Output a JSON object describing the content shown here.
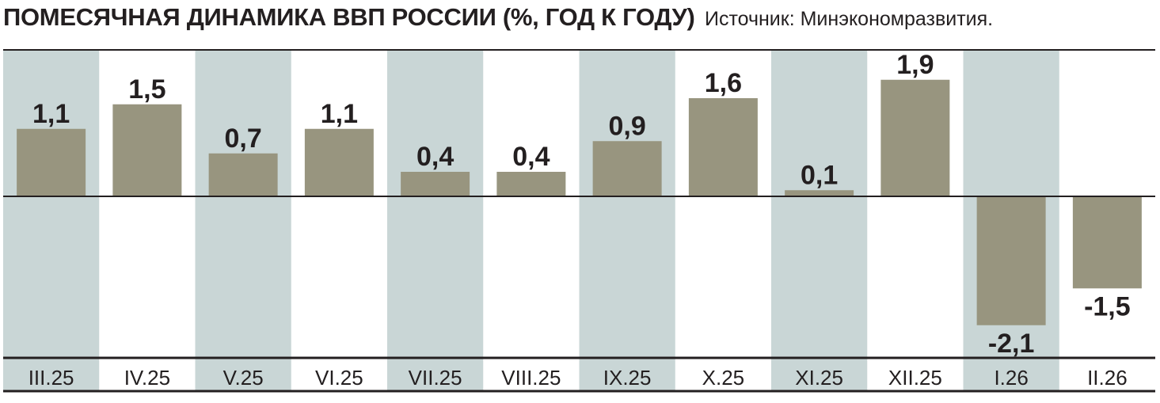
{
  "header": {
    "title": "ПОМЕСЯЧНАЯ ДИНАМИКА ВВП РОССИИ (%, ГОД К ГОДУ)",
    "source": "Источник: Минэкономразвития."
  },
  "colors": {
    "bar": "#98957f",
    "stripe": "#c9d6d6",
    "axis": "#231f20",
    "text": "#231f20"
  },
  "chart_data": {
    "type": "bar",
    "title": "ПОМЕСЯЧНАЯ ДИНАМИКА ВВП РОССИИ (%, ГОД К ГОДУ)",
    "xlabel": "",
    "ylabel": "",
    "categories": [
      "III.25",
      "IV.25",
      "V.25",
      "VI.25",
      "VII.25",
      "VIII.25",
      "IX.25",
      "X.25",
      "XI.25",
      "XII.25",
      "I.26",
      "II.26"
    ],
    "values": [
      1.1,
      1.5,
      0.7,
      1.1,
      0.4,
      0.4,
      0.9,
      1.6,
      0.1,
      1.9,
      -2.1,
      -1.5
    ],
    "value_labels": [
      "1,1",
      "1,5",
      "0,7",
      "1,1",
      "0,4",
      "0,4",
      "0,9",
      "1,6",
      "0,1",
      "1,9",
      "-2,1",
      "-1,5"
    ],
    "ylim": [
      -2.7,
      2.5
    ],
    "grid": false,
    "legend": "none",
    "shaded_columns": [
      0,
      2,
      4,
      6,
      8,
      10
    ]
  }
}
